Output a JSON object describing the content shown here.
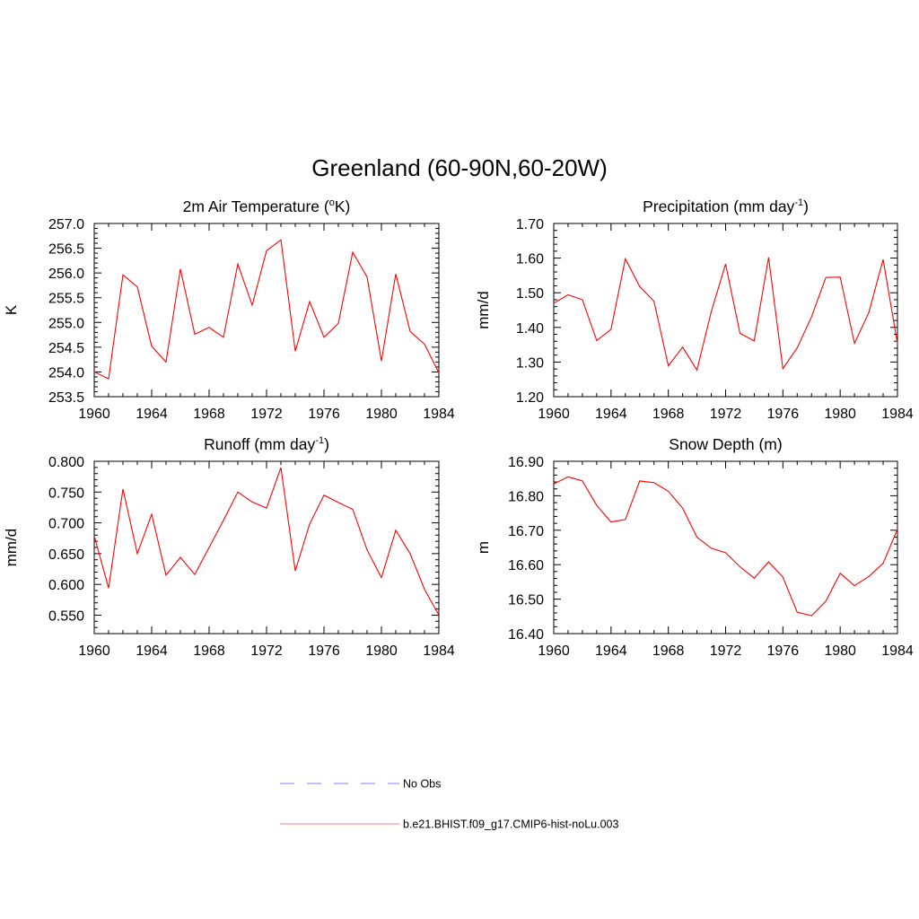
{
  "figure": {
    "title": "Greenland (60-90N,60-20W)"
  },
  "legend": {
    "placement": "bottom-center",
    "entries": [
      {
        "label": "No Obs",
        "color": "#9999ff",
        "dash": "dashed"
      },
      {
        "label": "b.e21.BHIST.f09_g17.CMIP6-hist-noLu.003",
        "color": "#ff9999",
        "dash": "solid"
      }
    ]
  },
  "chart_data": [
    {
      "type": "line",
      "title": "2m Air Temperature (",
      "title_sup": "o",
      "title_after": "K)",
      "xlabel": "",
      "ylabel": "K",
      "xlim": [
        1960,
        1984
      ],
      "ylim": [
        253.5,
        257.0
      ],
      "xticks": [
        "1960",
        "1964",
        "1968",
        "1972",
        "1976",
        "1980",
        "1984"
      ],
      "yticks": [
        "253.5",
        "254.0",
        "254.5",
        "255.0",
        "255.5",
        "256.0",
        "256.5",
        "257.0"
      ],
      "grid": false,
      "color": "#ff0000",
      "x": [
        1960,
        1961,
        1962,
        1963,
        1964,
        1965,
        1966,
        1967,
        1968,
        1969,
        1970,
        1971,
        1972,
        1973,
        1974,
        1975,
        1976,
        1977,
        1978,
        1979,
        1980,
        1981,
        1982,
        1983,
        1984
      ],
      "y": [
        254.0,
        253.86,
        255.96,
        255.72,
        254.52,
        254.2,
        256.08,
        254.76,
        254.9,
        254.7,
        256.18,
        255.35,
        256.45,
        256.67,
        254.42,
        255.42,
        254.7,
        254.98,
        256.42,
        255.92,
        254.22,
        255.98,
        254.82,
        254.56,
        253.98
      ]
    },
    {
      "type": "line",
      "title": "Precipitation (mm day",
      "title_sup": "-1",
      "title_after": ")",
      "xlabel": "",
      "ylabel": "mm/d",
      "xlim": [
        1960,
        1984
      ],
      "ylim": [
        1.2,
        1.7
      ],
      "xticks": [
        "1960",
        "1964",
        "1968",
        "1972",
        "1976",
        "1980",
        "1984"
      ],
      "yticks": [
        "1.20",
        "1.30",
        "1.40",
        "1.50",
        "1.60",
        "1.70"
      ],
      "grid": false,
      "color": "#ff0000",
      "x": [
        1960,
        1961,
        1962,
        1963,
        1964,
        1965,
        1966,
        1967,
        1968,
        1969,
        1970,
        1971,
        1972,
        1973,
        1974,
        1975,
        1976,
        1977,
        1978,
        1979,
        1980,
        1981,
        1982,
        1983,
        1984
      ],
      "y": [
        1.47,
        1.494,
        1.48,
        1.362,
        1.394,
        1.598,
        1.518,
        1.475,
        1.289,
        1.343,
        1.277,
        1.445,
        1.583,
        1.383,
        1.361,
        1.602,
        1.281,
        1.341,
        1.431,
        1.544,
        1.545,
        1.354,
        1.443,
        1.596,
        1.353
      ]
    },
    {
      "type": "line",
      "title": "Runoff (mm day",
      "title_sup": "-1",
      "title_after": ")",
      "xlabel": "",
      "ylabel": "mm/d",
      "xlim": [
        1960,
        1984
      ],
      "ylim": [
        0.52,
        0.8
      ],
      "xticks": [
        "1960",
        "1964",
        "1968",
        "1972",
        "1976",
        "1980",
        "1984"
      ],
      "yticks": [
        "0.550",
        "0.600",
        "0.650",
        "0.700",
        "0.750",
        "0.800"
      ],
      "grid": false,
      "color": "#ff0000",
      "x": [
        1960,
        1961,
        1962,
        1963,
        1964,
        1965,
        1966,
        1967,
        1968,
        1969,
        1970,
        1971,
        1972,
        1973,
        1974,
        1975,
        1976,
        1977,
        1978,
        1979,
        1980,
        1981,
        1982,
        1983,
        1984
      ],
      "y": [
        0.679,
        0.594,
        0.755,
        0.65,
        0.714,
        0.615,
        0.644,
        0.616,
        0.66,
        0.704,
        0.75,
        0.734,
        0.724,
        0.79,
        0.622,
        0.698,
        0.745,
        0.733,
        0.722,
        0.656,
        0.611,
        0.688,
        0.65,
        0.592,
        0.55
      ]
    },
    {
      "type": "line",
      "title": "Snow Depth (m)",
      "title_sup": "",
      "title_after": "",
      "xlabel": "",
      "ylabel": "m",
      "xlim": [
        1960,
        1984
      ],
      "ylim": [
        16.4,
        16.9
      ],
      "xticks": [
        "1960",
        "1964",
        "1968",
        "1972",
        "1976",
        "1980",
        "1984"
      ],
      "yticks": [
        "16.40",
        "16.50",
        "16.60",
        "16.70",
        "16.80",
        "16.90"
      ],
      "grid": false,
      "color": "#ff0000",
      "x": [
        1960,
        1961,
        1962,
        1963,
        1964,
        1965,
        1966,
        1967,
        1968,
        1969,
        1970,
        1971,
        1972,
        1973,
        1974,
        1975,
        1976,
        1977,
        1978,
        1979,
        1980,
        1981,
        1982,
        1983,
        1984
      ],
      "y": [
        16.834,
        16.855,
        16.843,
        16.772,
        16.724,
        16.731,
        16.843,
        16.838,
        16.813,
        16.764,
        16.68,
        16.648,
        16.635,
        16.594,
        16.561,
        16.608,
        16.564,
        16.462,
        16.452,
        16.494,
        16.575,
        16.539,
        16.566,
        16.604,
        16.703
      ]
    }
  ]
}
